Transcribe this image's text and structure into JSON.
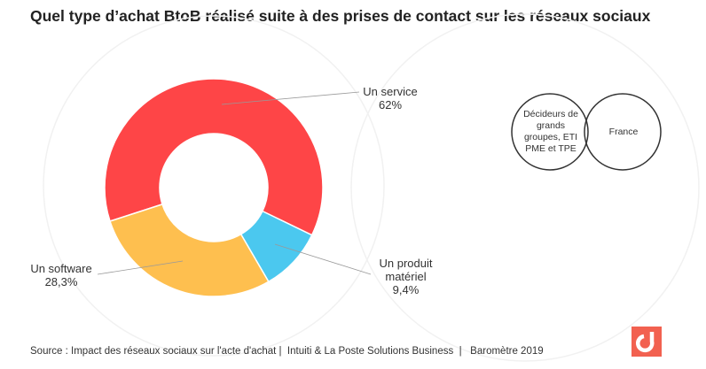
{
  "title": "Quel type d’achat BtoB réalisé suite à des prises de contact sur les réseaux sociaux",
  "chart_data": {
    "type": "pie",
    "variant": "donut",
    "categories": [
      "Un service",
      "Un produit matériel",
      "Un software"
    ],
    "values": [
      62,
      9.4,
      28.3
    ],
    "value_labels": [
      "62%",
      "9,4%",
      "28,3%"
    ],
    "colors": [
      "#fe4547",
      "#4bc8ef",
      "#febf4f"
    ]
  },
  "labels": {
    "service_name": "Un service",
    "service_value": "62%",
    "material_name": "Un produit matériel",
    "material_value": "9,4%",
    "software_name": "Un software",
    "software_value": "28,3%"
  },
  "venn": {
    "left": "Décideurs de grands groupes, ETI PME et TPE",
    "right": "France"
  },
  "source": "Source : Impact des réseaux sociaux sur l'acte d'achat |  Intuiti & La Poste Solutions Business  |   Baromètre 2019"
}
